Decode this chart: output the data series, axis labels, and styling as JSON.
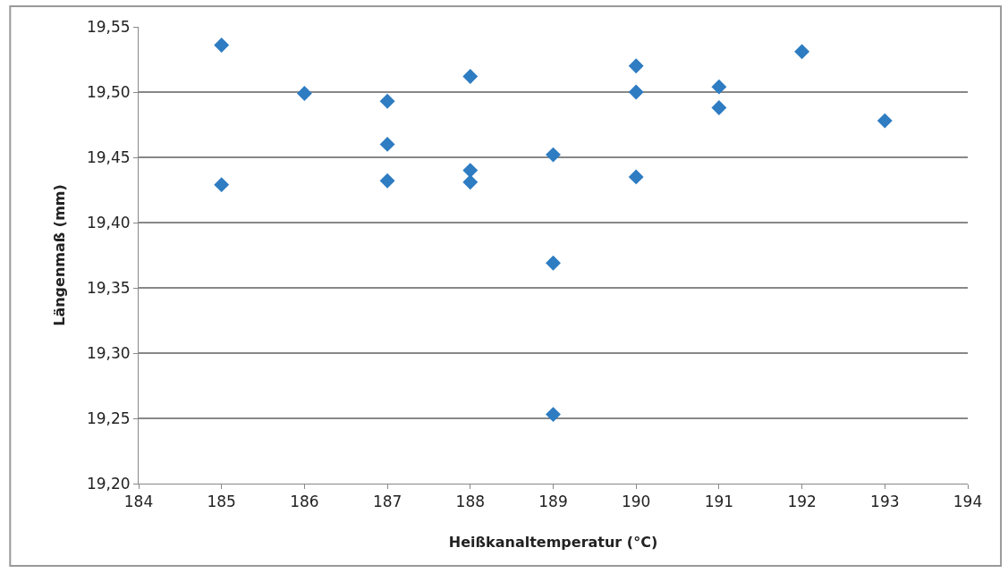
{
  "chart_data": {
    "type": "scatter",
    "xlabel": "Heißkanaltemperatur (°C)",
    "ylabel": "Längenmaß (mm)",
    "x": [
      185,
      185,
      186,
      187,
      187,
      187,
      188,
      188,
      188,
      189,
      189,
      189,
      190,
      190,
      190,
      191,
      191,
      192,
      193
    ],
    "series": [
      {
        "color": "#2e7cc2",
        "values": [
          19.536,
          19.429,
          19.499,
          19.493,
          19.46,
          19.432,
          19.512,
          19.44,
          19.431,
          19.452,
          19.369,
          19.253,
          19.52,
          19.5,
          19.435,
          19.504,
          19.488,
          19.531,
          19.478
        ]
      }
    ],
    "xlim": [
      184,
      194
    ],
    "xticks": [
      184,
      185,
      186,
      187,
      188,
      189,
      190,
      191,
      192,
      193,
      194
    ],
    "ylim": [
      19.2,
      19.55
    ],
    "yticks": [
      {
        "value": 19.2,
        "label": "19,20"
      },
      {
        "value": 19.25,
        "label": "19,25"
      },
      {
        "value": 19.3,
        "label": "19,30"
      },
      {
        "value": 19.35,
        "label": "19,35"
      },
      {
        "value": 19.4,
        "label": "19,40"
      },
      {
        "value": 19.45,
        "label": "19,45"
      },
      {
        "value": 19.5,
        "label": "19,50"
      },
      {
        "value": 19.55,
        "label": "19,55"
      }
    ],
    "grid": "y",
    "marker": "diamond"
  }
}
